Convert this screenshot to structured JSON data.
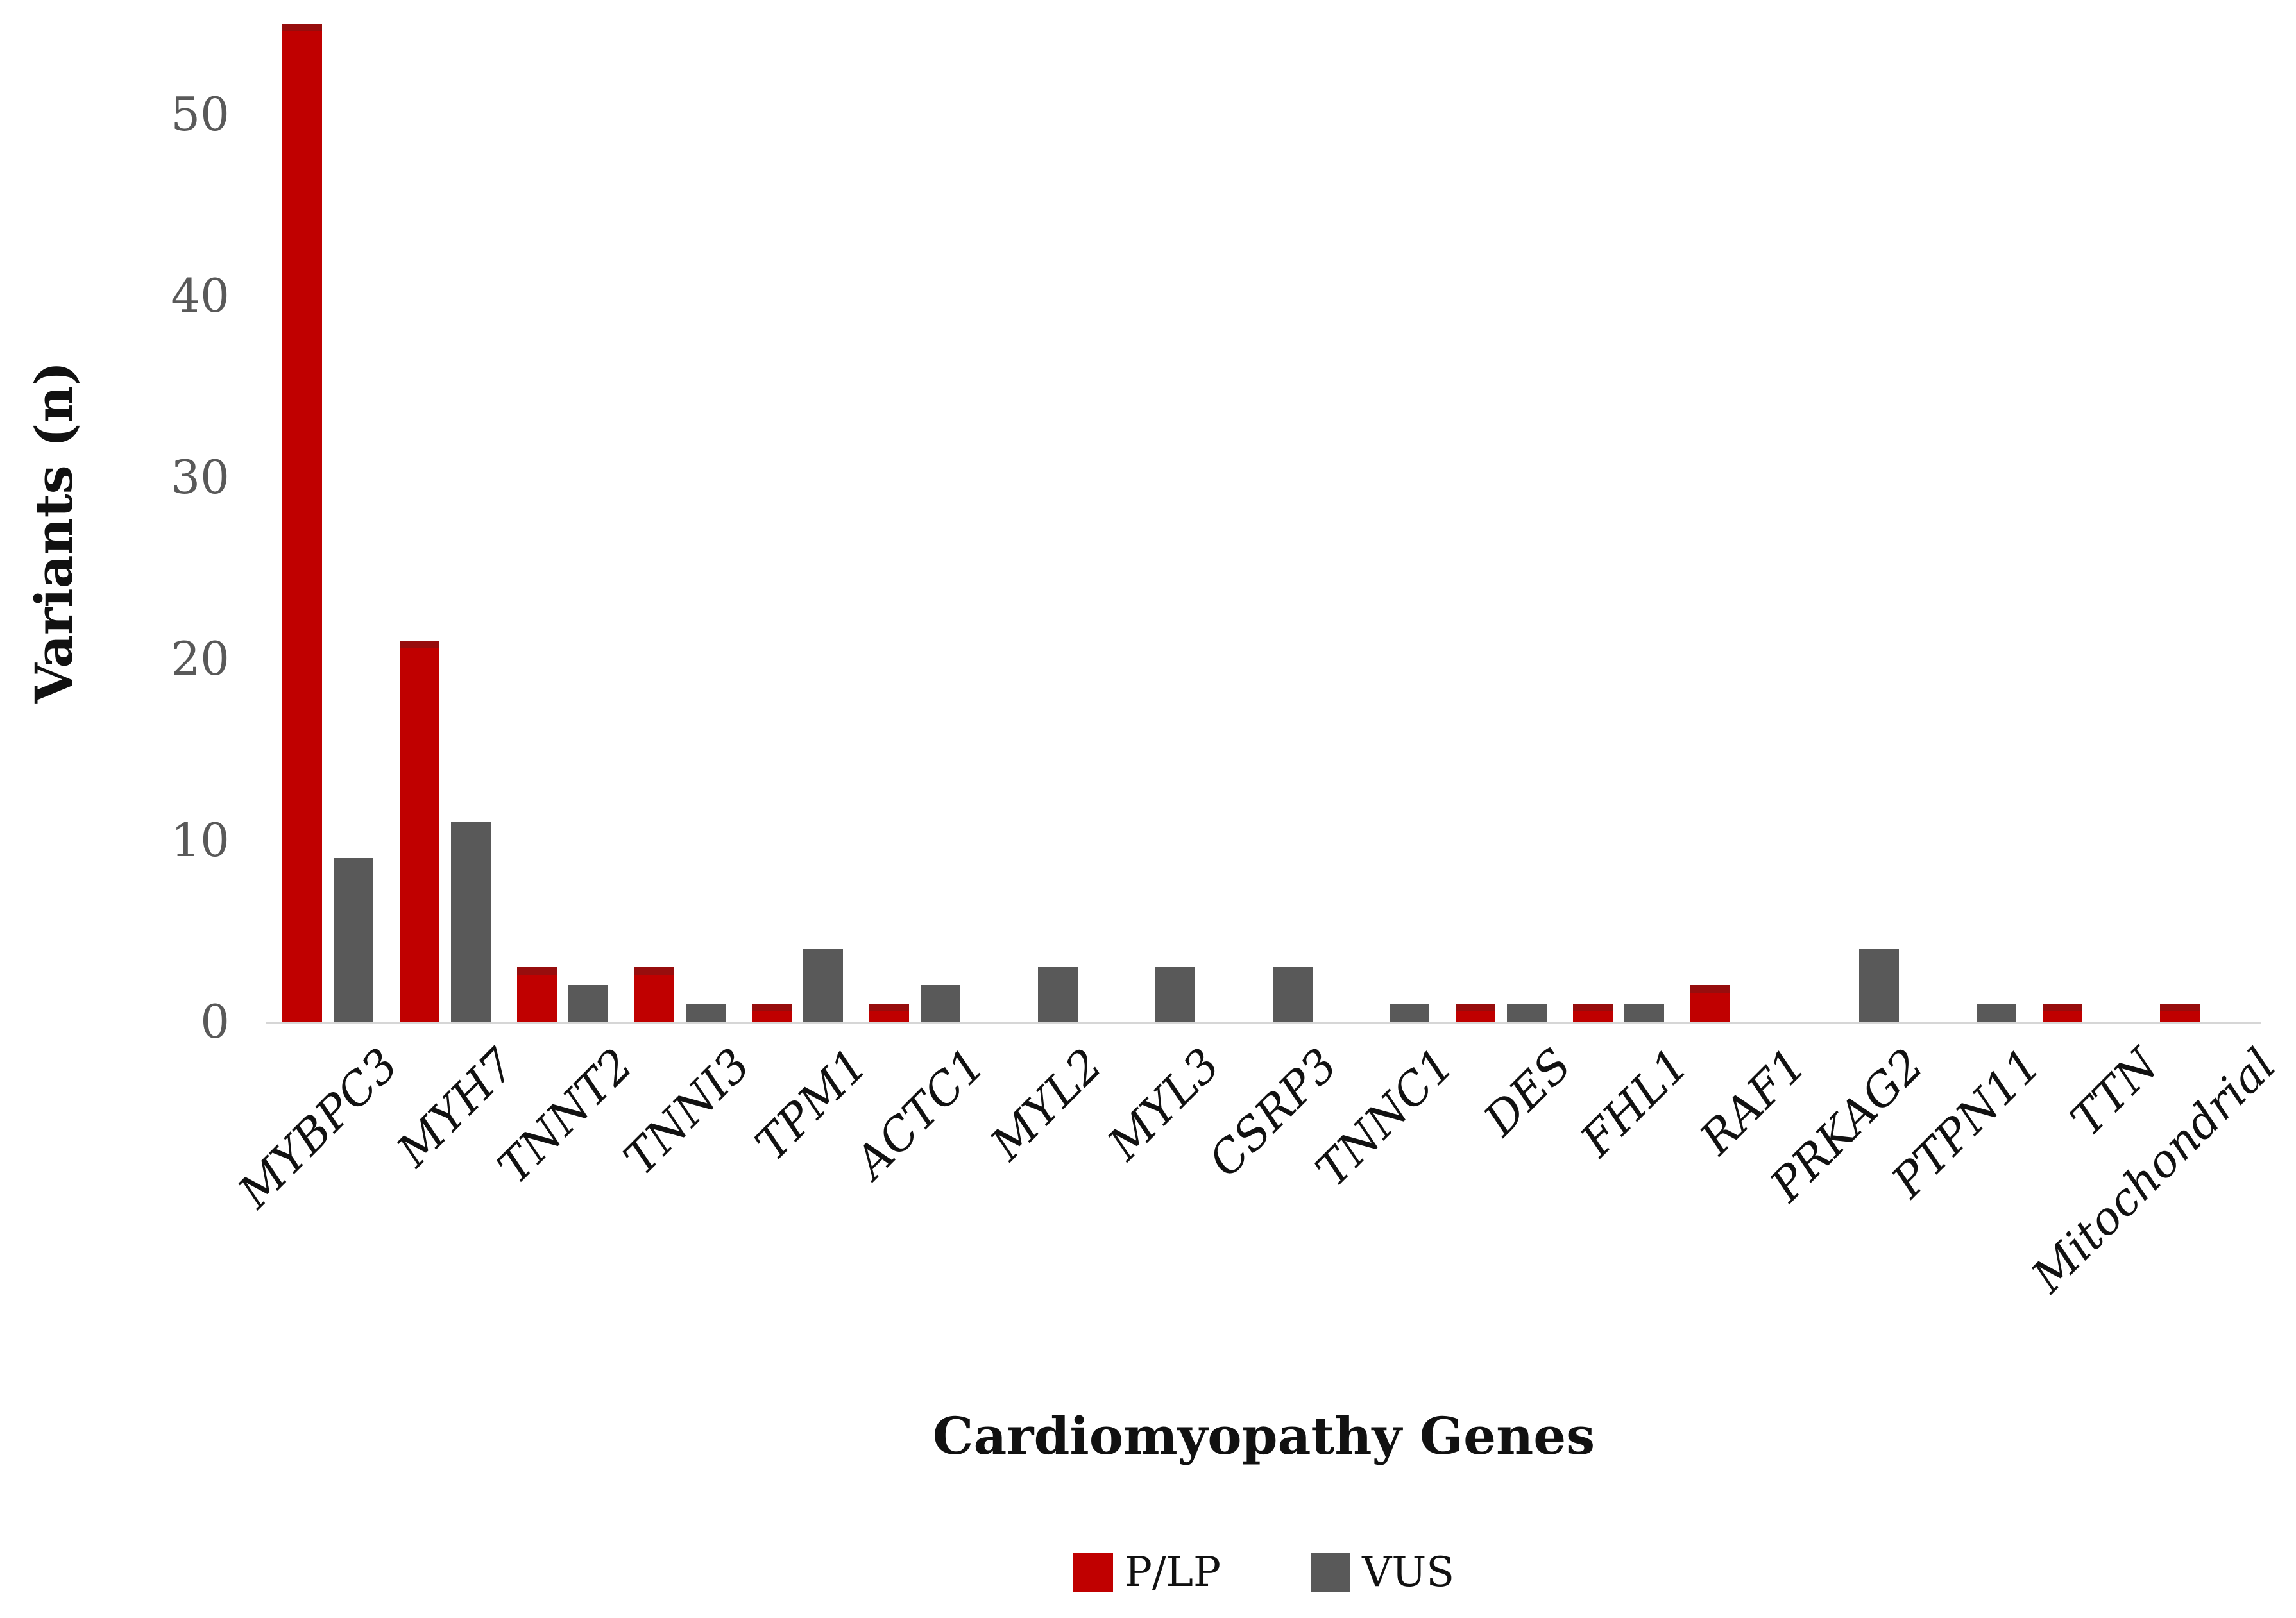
{
  "figure": {
    "y_axis_title": "Variants (n)",
    "x_axis_title": "Cardiomyopathy Genes",
    "background_color": "#ffffff",
    "axis_line_color": "#d6d6d6",
    "tick_label_color": "#595959",
    "legend": [
      {
        "label": "P/LP",
        "color": "#c00000"
      },
      {
        "label": "VUS",
        "color": "#595959"
      }
    ]
  },
  "chart_data": {
    "type": "bar",
    "title": "",
    "xlabel": "Cardiomyopathy Genes",
    "ylabel": "Variants (n)",
    "categories": [
      "MYBPC3",
      "MYH7",
      "TNNT2",
      "TNNI3",
      "TPM1",
      "ACTC1",
      "MYL2",
      "MYL3",
      "CSRP3",
      "TNNC1",
      "DES",
      "FHL1",
      "RAF1",
      "PRKAG2",
      "PTPN11",
      "TTN",
      "Mitochondrial"
    ],
    "series": [
      {
        "name": "P/LP",
        "color": "#c00000",
        "values": [
          55,
          21,
          3,
          3,
          1,
          1,
          0,
          0,
          0,
          0,
          1,
          1,
          2,
          0,
          0,
          1,
          1
        ]
      },
      {
        "name": "VUS",
        "color": "#595959",
        "values": [
          9,
          11,
          2,
          1,
          4,
          2,
          3,
          3,
          3,
          1,
          1,
          1,
          0,
          4,
          1,
          0,
          0
        ]
      }
    ],
    "ylim": [
      0,
      55
    ],
    "yticks": [
      0,
      10,
      20,
      30,
      40,
      50
    ],
    "grid": false,
    "legend_position": "bottom",
    "x_tick_style": "italic, rotated 45deg",
    "bar_style": "clustered"
  }
}
